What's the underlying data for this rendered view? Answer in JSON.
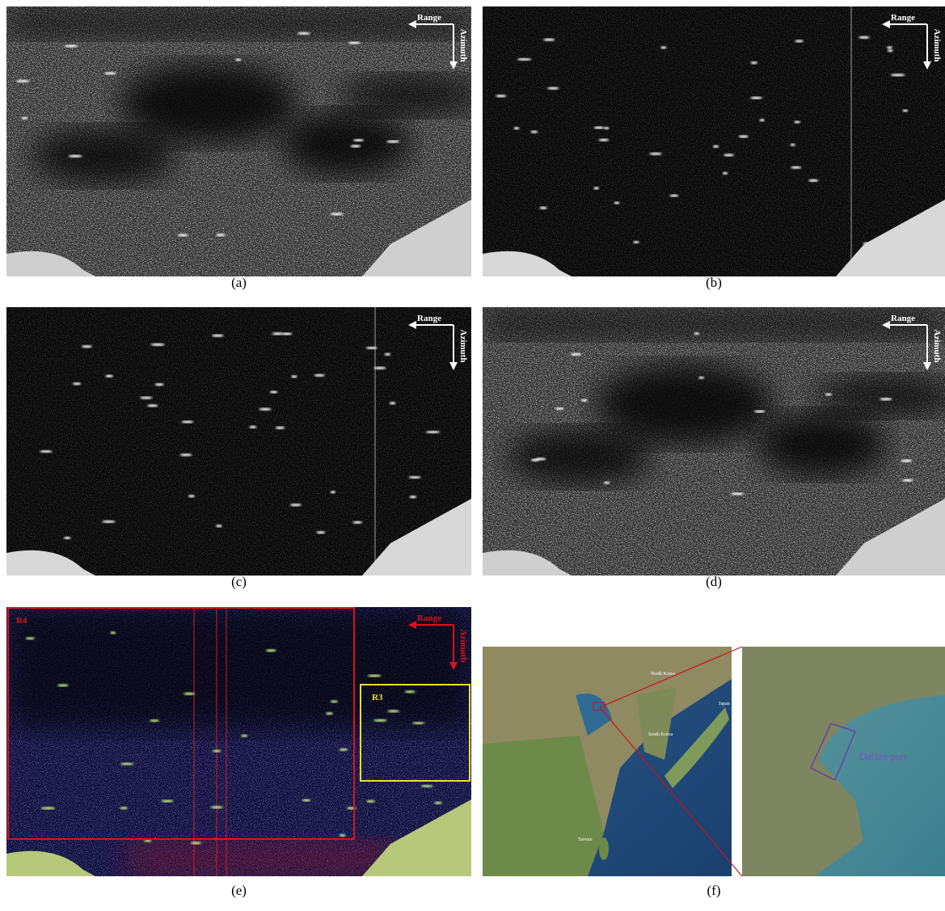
{
  "panels": [
    {
      "caption": "(a)",
      "range": "Range",
      "azimuth": "Azimuth"
    },
    {
      "caption": "(b)",
      "range": "Range",
      "azimuth": "Azimuth"
    },
    {
      "caption": "(c)",
      "range": "Range",
      "azimuth": "Azimuth"
    },
    {
      "caption": "(d)",
      "range": "Range",
      "azimuth": "Azimuth"
    },
    {
      "caption": "(e)",
      "range": "Range",
      "azimuth": "Azimuth",
      "regions": [
        "R4",
        "R3"
      ]
    },
    {
      "caption": "(f)",
      "map_labels": [
        "North Korea",
        "South Korea",
        "Japan",
        "Taiwan",
        "Dalian port"
      ]
    }
  ]
}
